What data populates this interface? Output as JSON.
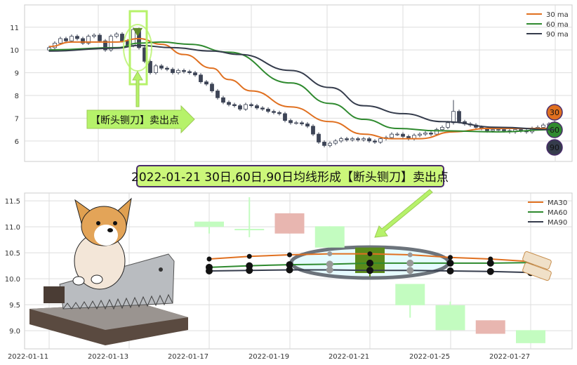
{
  "colors": {
    "ma30": "#e07020",
    "ma60": "#2f8a2f",
    "ma90": "#353c4c",
    "candle": "#3d4456",
    "bottom_candle": "#c3fcc0",
    "bottom_candle_down": "#e8b6b0",
    "highlight": "#b6f26a",
    "banner_fill": "#ccf77a",
    "banner_border": "#4a2d6b",
    "ellipse_stroke": "#6c737b",
    "ellipse_fill": "#e6fbff",
    "signal_candle": "#5a8a1a"
  },
  "banner": {
    "text": "2022-01-21 30日,60日,90日均线形成【断头铡刀】卖出点"
  },
  "chart_data": [
    {
      "type": "candlestick",
      "title": "",
      "yticks": [
        "11",
        "10",
        "9",
        "8",
        "7",
        "6"
      ],
      "ylim": [
        5.1,
        11.98
      ],
      "grid": true,
      "legend": {
        "placement": "top-right",
        "entries": [
          "30 ma",
          "60 ma",
          "90 ma"
        ]
      },
      "close": [
        10.1,
        10.3,
        10.5,
        10.4,
        10.6,
        10.5,
        10.3,
        10.6,
        10.65,
        10.4,
        10.0,
        10.6,
        10.7,
        10.4,
        10.2,
        10.9,
        10.1,
        9.5,
        9.0,
        9.3,
        9.2,
        9.15,
        9.0,
        9.1,
        9.05,
        9.0,
        8.9,
        8.6,
        8.5,
        8.2,
        7.9,
        7.7,
        7.6,
        7.55,
        7.4,
        7.6,
        7.55,
        7.45,
        7.4,
        7.3,
        7.25,
        7.2,
        6.9,
        6.8,
        6.8,
        6.75,
        6.65,
        6.3,
        5.95,
        5.8,
        5.9,
        6.0,
        6.1,
        6.05,
        6.1,
        6.05,
        6.1,
        6.0,
        5.95,
        6.1,
        6.15,
        6.3,
        6.3,
        6.2,
        6.1,
        6.25,
        6.3,
        6.35,
        6.3,
        6.5,
        6.6,
        6.8,
        7.3,
        6.85,
        6.75,
        6.7,
        6.6,
        6.55,
        6.45,
        6.5,
        6.5,
        6.45,
        6.4,
        6.5,
        6.45,
        6.4,
        6.55,
        6.6,
        6.7,
        6.75,
        6.8
      ],
      "spike": {
        "index": 72,
        "high": 7.8
      },
      "ma": [
        {
          "name": "30 ma",
          "knots": [
            [
              0,
              10.15
            ],
            [
              4,
              10.35
            ],
            [
              12,
              10.35
            ],
            [
              16,
              10.5
            ],
            [
              20,
              10.25
            ],
            [
              24,
              9.8
            ],
            [
              29,
              9.2
            ],
            [
              32,
              8.7
            ],
            [
              36,
              8.2
            ],
            [
              43,
              7.5
            ],
            [
              50,
              6.85
            ],
            [
              56,
              6.3
            ],
            [
              61,
              6.1
            ],
            [
              66,
              6.1
            ],
            [
              72,
              6.4
            ],
            [
              78,
              6.55
            ],
            [
              90,
              6.55
            ]
          ]
        },
        {
          "name": "60 ma",
          "knots": [
            [
              0,
              10.0
            ],
            [
              12,
              10.1
            ],
            [
              16,
              10.3
            ],
            [
              20,
              10.35
            ],
            [
              25,
              10.25
            ],
            [
              32,
              9.9
            ],
            [
              43,
              8.55
            ],
            [
              50,
              7.65
            ],
            [
              56,
              6.95
            ],
            [
              62,
              6.55
            ],
            [
              69,
              6.45
            ],
            [
              80,
              6.4
            ],
            [
              90,
              6.5
            ]
          ]
        },
        {
          "name": "90 ma",
          "knots": [
            [
              0,
              9.95
            ],
            [
              12,
              10.08
            ],
            [
              16,
              10.2
            ],
            [
              22,
              10.1
            ],
            [
              29,
              9.95
            ],
            [
              34,
              9.8
            ],
            [
              43,
              9.1
            ],
            [
              50,
              8.35
            ],
            [
              56,
              7.55
            ],
            [
              63,
              7.2
            ],
            [
              70,
              6.85
            ],
            [
              80,
              6.6
            ],
            [
              90,
              6.5
            ]
          ]
        }
      ],
      "signal_index": 15,
      "annotation": "【断头铡刀】卖出点",
      "end_badges": [
        "30",
        "60",
        "90"
      ]
    },
    {
      "type": "candlestick",
      "title": "",
      "yticks": [
        "11.5",
        "11.0",
        "10.5",
        "10.0",
        "9.5",
        "9.0"
      ],
      "ylim": [
        8.65,
        11.65
      ],
      "grid": true,
      "xticks": [
        "2022-01-11",
        "2022-01-13",
        "2022-01-17",
        "2022-01-19",
        "2022-01-21",
        "2022-01-25",
        "2022-01-27"
      ],
      "legend": {
        "placement": "top-right",
        "entries": [
          "MA30",
          "MA60",
          "MA90"
        ]
      },
      "dates": [
        "2022-01-17",
        "2022-01-18",
        "2022-01-19",
        "2022-01-20",
        "2022-01-21",
        "2022-01-24",
        "2022-01-25",
        "2022-01-26",
        "2022-01-27"
      ],
      "ohlc": [
        [
          11.1,
          11.1,
          10.87,
          11.0
        ],
        [
          10.96,
          11.57,
          10.8,
          10.96
        ],
        [
          11.26,
          11.26,
          10.87,
          10.87
        ],
        [
          11.01,
          11.01,
          10.6,
          10.6
        ],
        [
          10.6,
          10.6,
          10.04,
          10.11
        ],
        [
          9.9,
          9.9,
          9.25,
          9.49
        ],
        [
          9.49,
          9.56,
          9.01,
          9.01
        ],
        [
          9.2,
          9.2,
          8.94,
          8.94
        ],
        [
          9.01,
          9.01,
          8.76,
          8.76
        ]
      ],
      "ma30": [
        10.38,
        10.43,
        10.46,
        10.48,
        10.48,
        10.46,
        10.41,
        10.38,
        10.33
      ],
      "ma60": [
        10.22,
        10.25,
        10.27,
        10.28,
        10.3,
        10.3,
        10.3,
        10.3,
        10.31
      ],
      "ma90": [
        10.15,
        10.16,
        10.17,
        10.17,
        10.16,
        10.16,
        10.15,
        10.14,
        10.12
      ],
      "signal_date": "2022-01-21"
    }
  ]
}
